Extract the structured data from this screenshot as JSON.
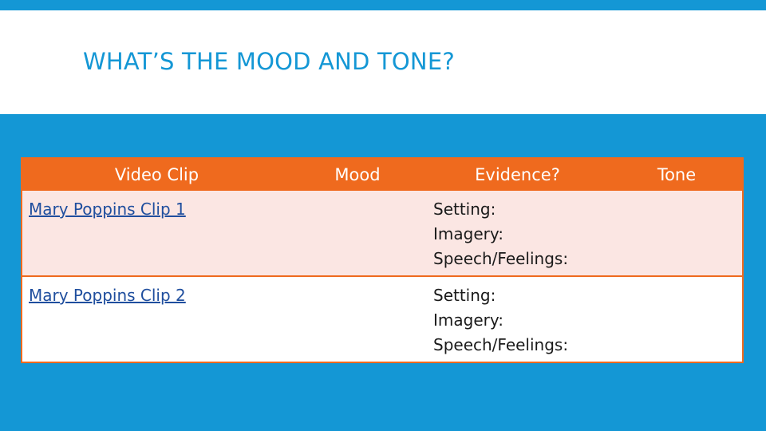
{
  "slide": {
    "title": "WHAT’S THE MOOD AND TONE?"
  },
  "table": {
    "headers": [
      "Video Clip",
      "Mood",
      "Evidence?",
      "Tone"
    ],
    "rows": [
      {
        "clip": "Mary Poppins Clip 1",
        "mood": "",
        "evidence": [
          "Setting:",
          "Imagery:",
          "Speech/Feelings:"
        ],
        "tone": ""
      },
      {
        "clip": "Mary Poppins Clip 2",
        "mood": "",
        "evidence": [
          "Setting:",
          "Imagery:",
          "Speech/Feelings:"
        ],
        "tone": ""
      }
    ]
  },
  "colors": {
    "background": "#1497d5",
    "accent_orange": "#ef6a1e",
    "row_tint": "#fbe6e3",
    "link": "#1f4e9e"
  }
}
